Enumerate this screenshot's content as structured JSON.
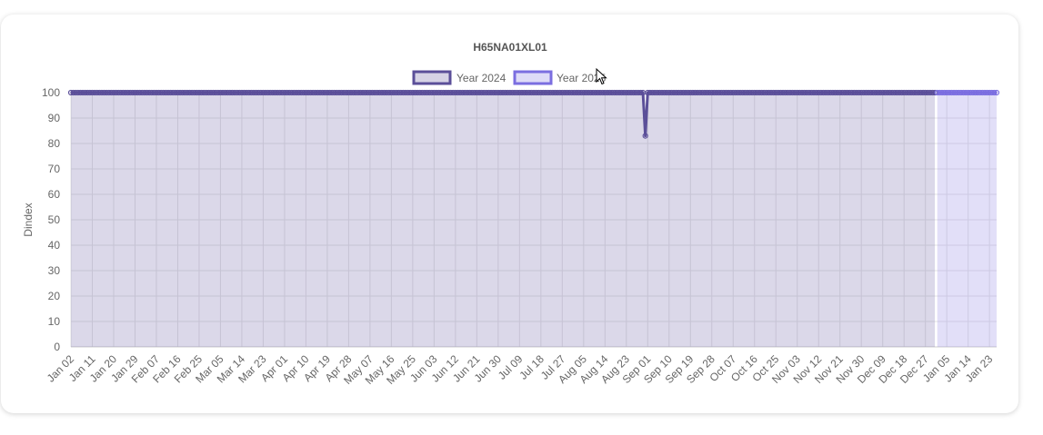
{
  "chart_data": {
    "type": "area",
    "title": "H65NA01XL01",
    "xlabel": "",
    "ylabel": "Dindex",
    "ylim": [
      0,
      100
    ],
    "yticks": [
      0,
      10,
      20,
      30,
      40,
      50,
      60,
      70,
      80,
      90,
      100
    ],
    "grid": true,
    "legend_position": "top",
    "x_tick_labels": [
      "Jan 02",
      "Jan 11",
      "Jan 20",
      "Jan 29",
      "Feb 07",
      "Feb 16",
      "Feb 25",
      "Mar 05",
      "Mar 14",
      "Mar 23",
      "Apr 01",
      "Apr 10",
      "Apr 19",
      "Apr 28",
      "May 07",
      "May 16",
      "May 25",
      "Jun 03",
      "Jun 12",
      "Jun 21",
      "Jun 30",
      "Jul 09",
      "Jul 18",
      "Jul 27",
      "Aug 05",
      "Aug 14",
      "Aug 23",
      "Sep 01",
      "Sep 10",
      "Sep 19",
      "Sep 28",
      "Oct 07",
      "Oct 16",
      "Oct 25",
      "Nov 03",
      "Nov 12",
      "Nov 21",
      "Nov 30",
      "Dec 09",
      "Dec 18",
      "Dec 27",
      "Jan 05",
      "Jan 14",
      "Jan 23"
    ],
    "series": [
      {
        "name": "Year 2024",
        "color": "#5b4f99",
        "fill": "rgba(91,79,153,0.22)",
        "x_range": [
          "Jan 02",
          "Dec 31"
        ],
        "baseline_value": 100,
        "dips": [
          {
            "x": "Aug 31",
            "y": 83
          }
        ]
      },
      {
        "name": "Year 2025",
        "color": "#7b6ee0",
        "fill": "rgba(123,110,224,0.22)",
        "x_range": [
          "Jan 01",
          "Jan 26"
        ],
        "baseline_value": 100,
        "dips": []
      }
    ]
  }
}
